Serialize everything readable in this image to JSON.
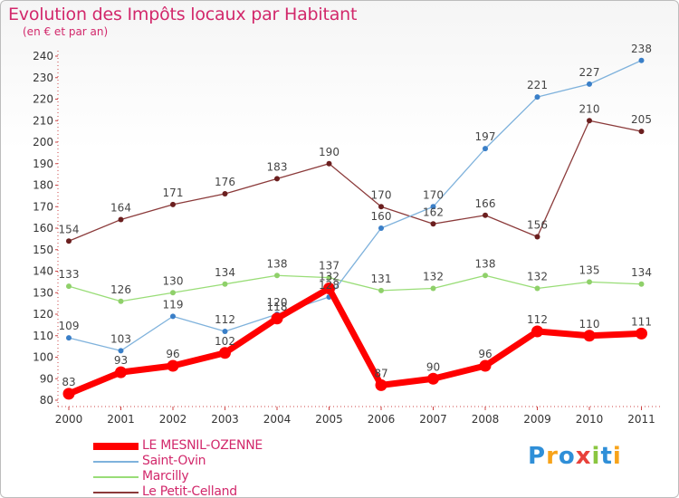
{
  "chart_data": {
    "type": "line",
    "title": "Evolution des Impôts locaux par Habitant",
    "subtitle": "(en € et par an)",
    "categories": [
      "2000",
      "2001",
      "2002",
      "2003",
      "2004",
      "2005",
      "2006",
      "2007",
      "2008",
      "2009",
      "2010",
      "2011"
    ],
    "ylim": [
      80,
      240
    ],
    "yticks": [
      80,
      90,
      100,
      110,
      120,
      130,
      140,
      150,
      160,
      170,
      180,
      190,
      200,
      210,
      220,
      230,
      240
    ],
    "grid": false,
    "legend_position": "bottom-left",
    "series": [
      {
        "name": "LE MESNIL-OZENNE",
        "color": "#ff0000",
        "values": [
          83,
          93,
          96,
          102,
          118,
          132,
          87,
          90,
          96,
          112,
          110,
          111
        ]
      },
      {
        "name": "Saint-Ovin",
        "color": "#7fb2dc",
        "values": [
          109,
          103,
          119,
          112,
          120,
          128,
          160,
          170,
          197,
          221,
          227,
          238
        ]
      },
      {
        "name": "Marcilly",
        "color": "#99dd77",
        "values": [
          133,
          126,
          130,
          134,
          138,
          137,
          131,
          132,
          138,
          132,
          135,
          134
        ]
      },
      {
        "name": "Le Petit-Celland",
        "color": "#8b3a3a",
        "values": [
          154,
          164,
          171,
          176,
          183,
          190,
          170,
          162,
          166,
          156,
          210,
          205
        ]
      }
    ]
  },
  "brand": {
    "letters": [
      "P",
      "r",
      "o",
      "x",
      "i",
      "t",
      "i"
    ],
    "colors": [
      "#2f8fd8",
      "#f7a31a",
      "#2f8fd8",
      "#e8423b",
      "#8ac640",
      "#2f8fd8",
      "#f7a31a"
    ]
  }
}
